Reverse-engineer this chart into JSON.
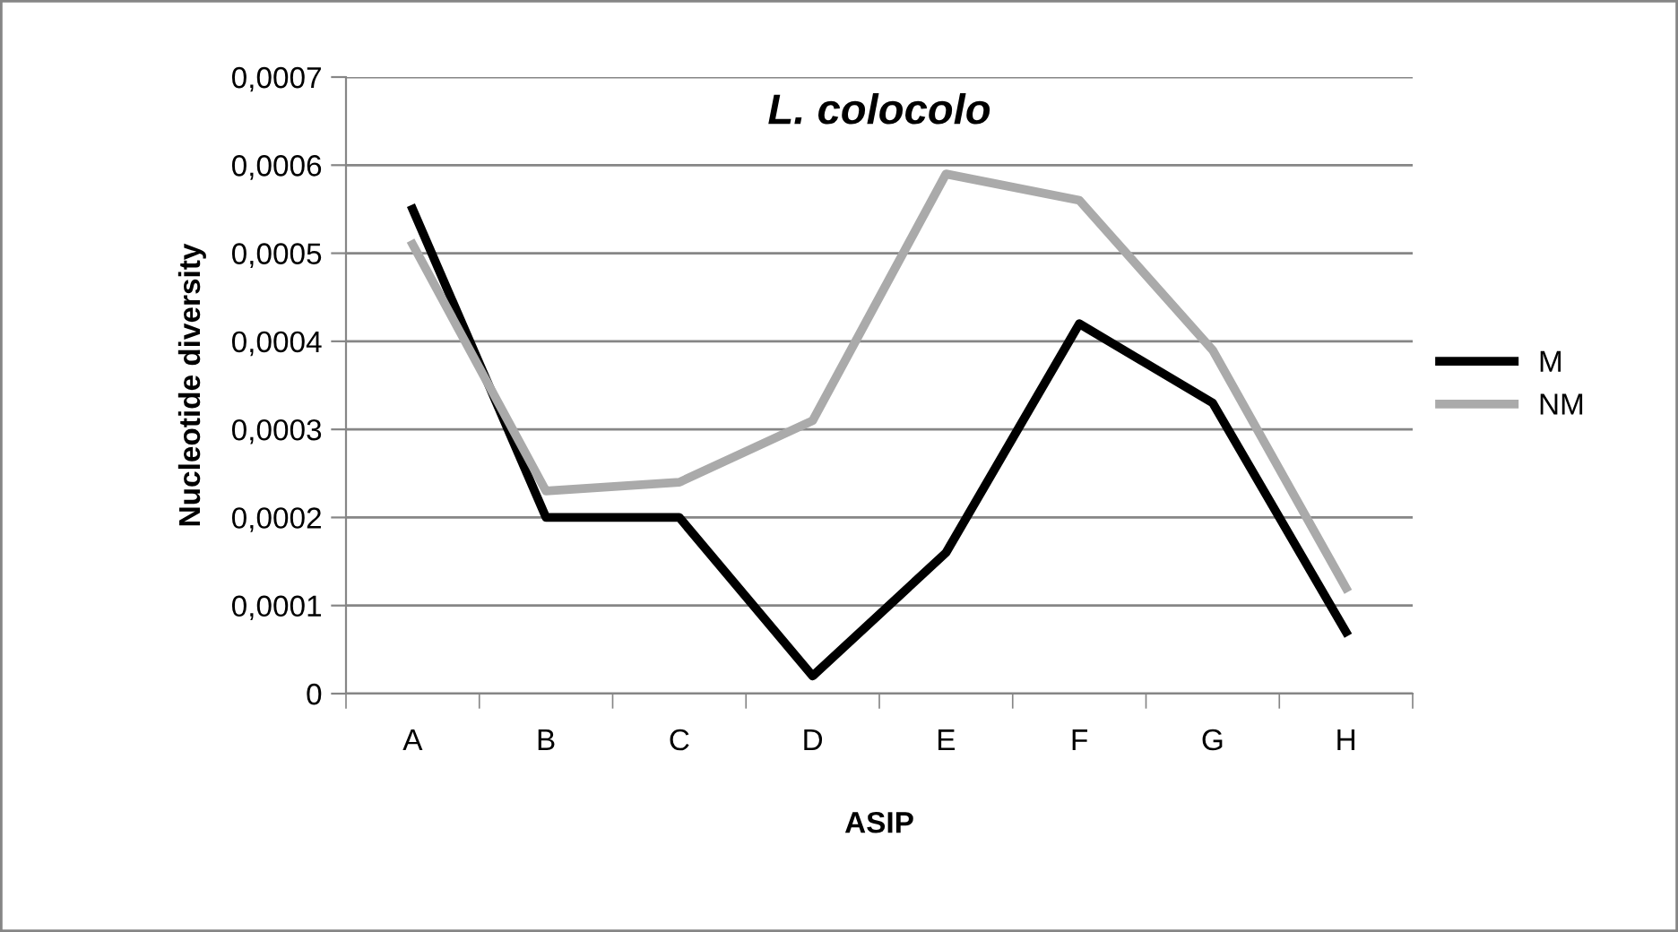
{
  "chart_data": {
    "type": "line",
    "title": "L. colocolo",
    "xlabel": "ASIP",
    "ylabel": "Nucleotide diversity",
    "categories": [
      "A",
      "B",
      "C",
      "D",
      "E",
      "F",
      "G",
      "H"
    ],
    "series": [
      {
        "name": "M",
        "color": "#000000",
        "values": [
          0.00055,
          0.0002,
          0.0002,
          2e-05,
          0.00016,
          0.00042,
          0.00033,
          7e-05
        ]
      },
      {
        "name": "NM",
        "color": "#aaaaaa",
        "values": [
          0.00051,
          0.00023,
          0.00024,
          0.00031,
          0.00059,
          0.00056,
          0.00039,
          0.00012
        ]
      }
    ],
    "ylim": [
      0,
      0.0007
    ],
    "yticks": [
      0,
      {
        "value": 0.0001,
        "label": "0,0001"
      },
      {
        "value": 0.0002,
        "label": "0,0002"
      },
      {
        "value": 0.0003,
        "label": "0,0003"
      },
      {
        "value": 0.0004,
        "label": "0,0004"
      },
      {
        "value": 0.0005,
        "label": "0,0005"
      },
      {
        "value": 0.0006,
        "label": "0,0006"
      },
      {
        "value": 0.0007,
        "label": "0,0007"
      }
    ],
    "grid": "y",
    "legend": "right",
    "marker": "none",
    "line_style": "solid"
  }
}
